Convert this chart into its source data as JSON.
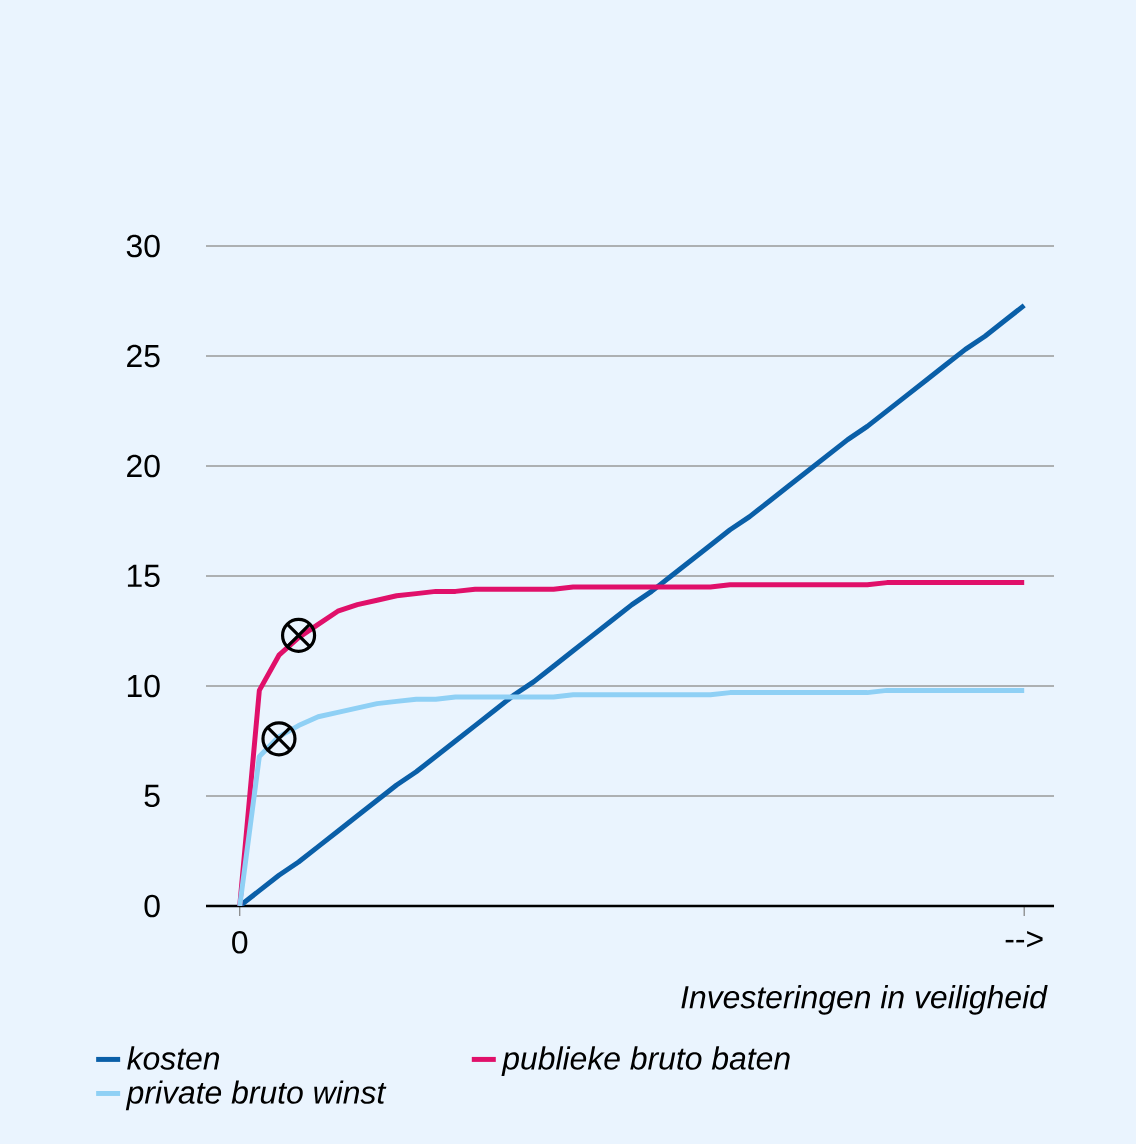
{
  "chart_data": {
    "type": "line",
    "xlabel": "Investeringen in veiligheid",
    "categories": [
      "0",
      null,
      null,
      null,
      null,
      null,
      null,
      null,
      null,
      null,
      null,
      null,
      null,
      null,
      null,
      null,
      null,
      null,
      null,
      null,
      null,
      null,
      null,
      null,
      null,
      null,
      null,
      null,
      null,
      null,
      null,
      null,
      null,
      null,
      null,
      null,
      null,
      null,
      null,
      null,
      "-->"
    ],
    "ylim": [
      0,
      30
    ],
    "yticks": [
      0,
      5,
      10,
      15,
      20,
      25,
      30
    ],
    "grid": "y",
    "legend": "bottom",
    "line_style": "solid",
    "series": [
      {
        "name": "kosten",
        "color": "#0a5fa8",
        "values": [
          0,
          0.7,
          1.4,
          2.0,
          2.7,
          3.4,
          4.1,
          4.8,
          5.5,
          6.1,
          6.8,
          7.5,
          8.2,
          8.9,
          9.6,
          10.2,
          10.9,
          11.6,
          12.3,
          13.0,
          13.7,
          14.3,
          15.0,
          15.7,
          16.4,
          17.1,
          17.7,
          18.4,
          19.1,
          19.8,
          20.5,
          21.2,
          21.8,
          22.5,
          23.2,
          23.9,
          24.6,
          25.3,
          25.9,
          26.6,
          27.3
        ]
      },
      {
        "name": "publieke bruto baten",
        "color": "#e0106a",
        "values": [
          0,
          9.8,
          11.4,
          12.2,
          12.8,
          13.4,
          13.7,
          13.9,
          14.1,
          14.2,
          14.3,
          14.3,
          14.4,
          14.4,
          14.4,
          14.4,
          14.4,
          14.5,
          14.5,
          14.5,
          14.5,
          14.5,
          14.5,
          14.5,
          14.5,
          14.6,
          14.6,
          14.6,
          14.6,
          14.6,
          14.6,
          14.6,
          14.6,
          14.7,
          14.7,
          14.7,
          14.7,
          14.7,
          14.7,
          14.7,
          14.7
        ]
      },
      {
        "name": "private bruto winst",
        "color": "#8fd0f5",
        "values": [
          0,
          6.8,
          7.7,
          8.2,
          8.6,
          8.8,
          9.0,
          9.2,
          9.3,
          9.4,
          9.4,
          9.5,
          9.5,
          9.5,
          9.5,
          9.5,
          9.5,
          9.6,
          9.6,
          9.6,
          9.6,
          9.6,
          9.6,
          9.6,
          9.6,
          9.7,
          9.7,
          9.7,
          9.7,
          9.7,
          9.7,
          9.7,
          9.7,
          9.8,
          9.8,
          9.8,
          9.8,
          9.8,
          9.8,
          9.8,
          9.8
        ]
      },
      {
        "type": "scatter",
        "marker": "cross",
        "color": "#000000",
        "values": [
          null,
          null,
          7.6,
          12.3,
          null,
          null,
          null,
          null,
          null,
          null,
          null,
          null,
          null,
          null,
          null,
          null,
          null,
          null,
          null,
          null,
          null,
          null,
          null,
          null,
          null,
          null,
          null,
          null,
          null,
          null,
          null,
          null,
          null,
          null,
          null,
          null,
          null,
          null,
          null,
          null,
          null
        ]
      }
    ]
  }
}
